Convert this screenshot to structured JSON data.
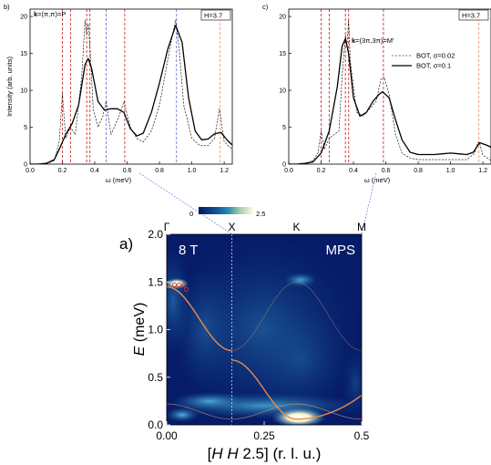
{
  "chart_data": [
    {
      "type": "line",
      "panel_label": "b)",
      "k_label_bold": "k",
      "k_label_rest": "=(π,π)=P",
      "box_label": "H=3.7",
      "xlabel": "ω (meV)",
      "ylabel": "Intensity (arb. units)",
      "xlim": [
        0,
        1.25
      ],
      "ylim": [
        0,
        21
      ],
      "xticks": [
        "0.0",
        "0.2",
        "0.4",
        "0.6",
        "0.8",
        "1.0",
        "1.2"
      ],
      "yticks": [
        "0",
        "5",
        "10",
        "15",
        "20"
      ],
      "vlines": [
        {
          "x": 0.2,
          "color": "#d03030"
        },
        {
          "x": 0.25,
          "color": "#d03030"
        },
        {
          "x": 0.35,
          "color": "#d03030"
        },
        {
          "x": 0.37,
          "color": "#d03030"
        },
        {
          "x": 0.47,
          "color": "#6a7bd6"
        },
        {
          "x": 0.585,
          "color": "#d03030"
        },
        {
          "x": 0.905,
          "color": "#6a7bd6"
        },
        {
          "x": 1.175,
          "color": "#f09a70"
        }
      ],
      "series": [
        {
          "style": "solid",
          "x": [
            0,
            0.05,
            0.1,
            0.15,
            0.18,
            0.22,
            0.26,
            0.3,
            0.34,
            0.36,
            0.38,
            0.42,
            0.46,
            0.5,
            0.54,
            0.58,
            0.62,
            0.66,
            0.7,
            0.75,
            0.8,
            0.85,
            0.9,
            0.94,
            0.98,
            1.02,
            1.06,
            1.1,
            1.14,
            1.18,
            1.22,
            1.25
          ],
          "y": [
            0,
            0,
            0.1,
            0.6,
            2.0,
            4.0,
            5.5,
            8.0,
            13.5,
            14.3,
            13.0,
            8.5,
            7.3,
            7.5,
            7.5,
            7.0,
            4.8,
            3.8,
            4.2,
            7.0,
            11.0,
            15.5,
            18.8,
            16.5,
            9.0,
            4.5,
            3.3,
            3.4,
            4.1,
            4.3,
            3.2,
            2.6
          ]
        },
        {
          "style": "dashed",
          "x": [
            0,
            0.1,
            0.15,
            0.18,
            0.2,
            0.22,
            0.25,
            0.28,
            0.32,
            0.34,
            0.35,
            0.36,
            0.37,
            0.39,
            0.42,
            0.45,
            0.47,
            0.5,
            0.55,
            0.58,
            0.62,
            0.66,
            0.7,
            0.75,
            0.8,
            0.85,
            0.88,
            0.9,
            0.92,
            0.95,
            1.0,
            1.05,
            1.1,
            1.14,
            1.17,
            1.18,
            1.2,
            1.25
          ],
          "y": [
            0,
            0,
            0.5,
            3.0,
            9.5,
            3.5,
            5.0,
            4.0,
            12.0,
            19.5,
            17.5,
            19.0,
            16.0,
            7.5,
            5.0,
            6.5,
            8.5,
            4.0,
            6.5,
            8.5,
            5.0,
            3.5,
            3.0,
            4.5,
            8.0,
            14.0,
            17.5,
            19.5,
            16.0,
            8.0,
            3.5,
            2.5,
            2.5,
            3.5,
            7.5,
            6.0,
            3.0,
            2.0
          ]
        }
      ]
    },
    {
      "type": "line",
      "panel_label": "c)",
      "k_label_bold": "k",
      "k_label_rest": "=(3π,3π)=M'",
      "box_label": "H=3.7",
      "xlabel": "ω (meV)",
      "ylabel": "",
      "xlim": [
        0,
        1.25
      ],
      "ylim": [
        0,
        21
      ],
      "xticks": [
        "0.0",
        "0.2",
        "0.4",
        "0.6",
        "0.8",
        "1.0",
        "1.2"
      ],
      "yticks": [
        "0",
        "5",
        "10",
        "15",
        "20"
      ],
      "legend": [
        {
          "style": "dashed",
          "label": "BOT, σ=0.02"
        },
        {
          "style": "solid",
          "label": "BOT, σ=0.1"
        }
      ],
      "vlines": [
        {
          "x": 0.2,
          "color": "#d03030"
        },
        {
          "x": 0.25,
          "color": "#d03030"
        },
        {
          "x": 0.35,
          "color": "#d03030"
        },
        {
          "x": 0.37,
          "color": "#d03030"
        },
        {
          "x": 0.585,
          "color": "#d03030"
        },
        {
          "x": 1.175,
          "color": "#f09a70"
        }
      ],
      "series": [
        {
          "style": "solid",
          "x": [
            0,
            0.05,
            0.1,
            0.15,
            0.2,
            0.25,
            0.3,
            0.33,
            0.35,
            0.37,
            0.4,
            0.44,
            0.48,
            0.52,
            0.56,
            0.58,
            0.62,
            0.66,
            0.7,
            0.75,
            0.8,
            0.85,
            0.9,
            0.95,
            1.0,
            1.05,
            1.1,
            1.14,
            1.18,
            1.22,
            1.25
          ],
          "y": [
            0,
            0,
            0.1,
            0.3,
            1.5,
            4.5,
            10.5,
            16.0,
            17.0,
            15.0,
            9.0,
            6.5,
            7.0,
            8.5,
            9.5,
            9.8,
            9.0,
            6.0,
            3.3,
            1.6,
            1.3,
            1.3,
            1.3,
            1.4,
            1.5,
            1.4,
            1.3,
            1.6,
            2.9,
            2.6,
            2.3
          ]
        },
        {
          "style": "dashed",
          "x": [
            0,
            0.1,
            0.15,
            0.18,
            0.2,
            0.22,
            0.25,
            0.28,
            0.31,
            0.33,
            0.35,
            0.36,
            0.37,
            0.38,
            0.42,
            0.46,
            0.5,
            0.54,
            0.57,
            0.59,
            0.62,
            0.66,
            0.7,
            0.75,
            0.8,
            0.9,
            1.0,
            1.1,
            1.15,
            1.17,
            1.18,
            1.2,
            1.25
          ],
          "y": [
            0,
            0,
            0.5,
            1.5,
            4.5,
            2.0,
            3.5,
            4.0,
            4.5,
            12.0,
            17.5,
            16.0,
            19.5,
            14.0,
            7.0,
            6.5,
            7.5,
            8.5,
            11.5,
            11.8,
            9.5,
            4.0,
            1.5,
            0.8,
            0.6,
            0.6,
            0.6,
            0.6,
            1.5,
            3.0,
            2.8,
            1.2,
            0.5
          ]
        }
      ]
    },
    {
      "type": "heatmap",
      "panel_label": "a)",
      "xlabel_parts": [
        "[",
        "H",
        "  ",
        "H",
        "  2.5] (r. l. u.)"
      ],
      "ylabel": "E (meV)",
      "ylabel_italic": "E",
      "ylabel_rest": " (meV)",
      "xlim": [
        0,
        0.5
      ],
      "ylim": [
        0,
        2.0
      ],
      "xticks": [
        "0.00",
        "0.25",
        "0.5"
      ],
      "yticks": [
        "0.0",
        "0.5",
        "1.0",
        "1.5",
        "2.0"
      ],
      "top_labels": [
        {
          "x": 0.0,
          "text": "Γ"
        },
        {
          "x": 0.167,
          "text": "X"
        },
        {
          "x": 0.333,
          "text": "K"
        },
        {
          "x": 0.5,
          "text": "M"
        }
      ],
      "colorbar": {
        "min": "0",
        "max": "2.5"
      },
      "field_label": "8 T",
      "sample_label": "MPS",
      "marker_x": 0.167
    }
  ]
}
